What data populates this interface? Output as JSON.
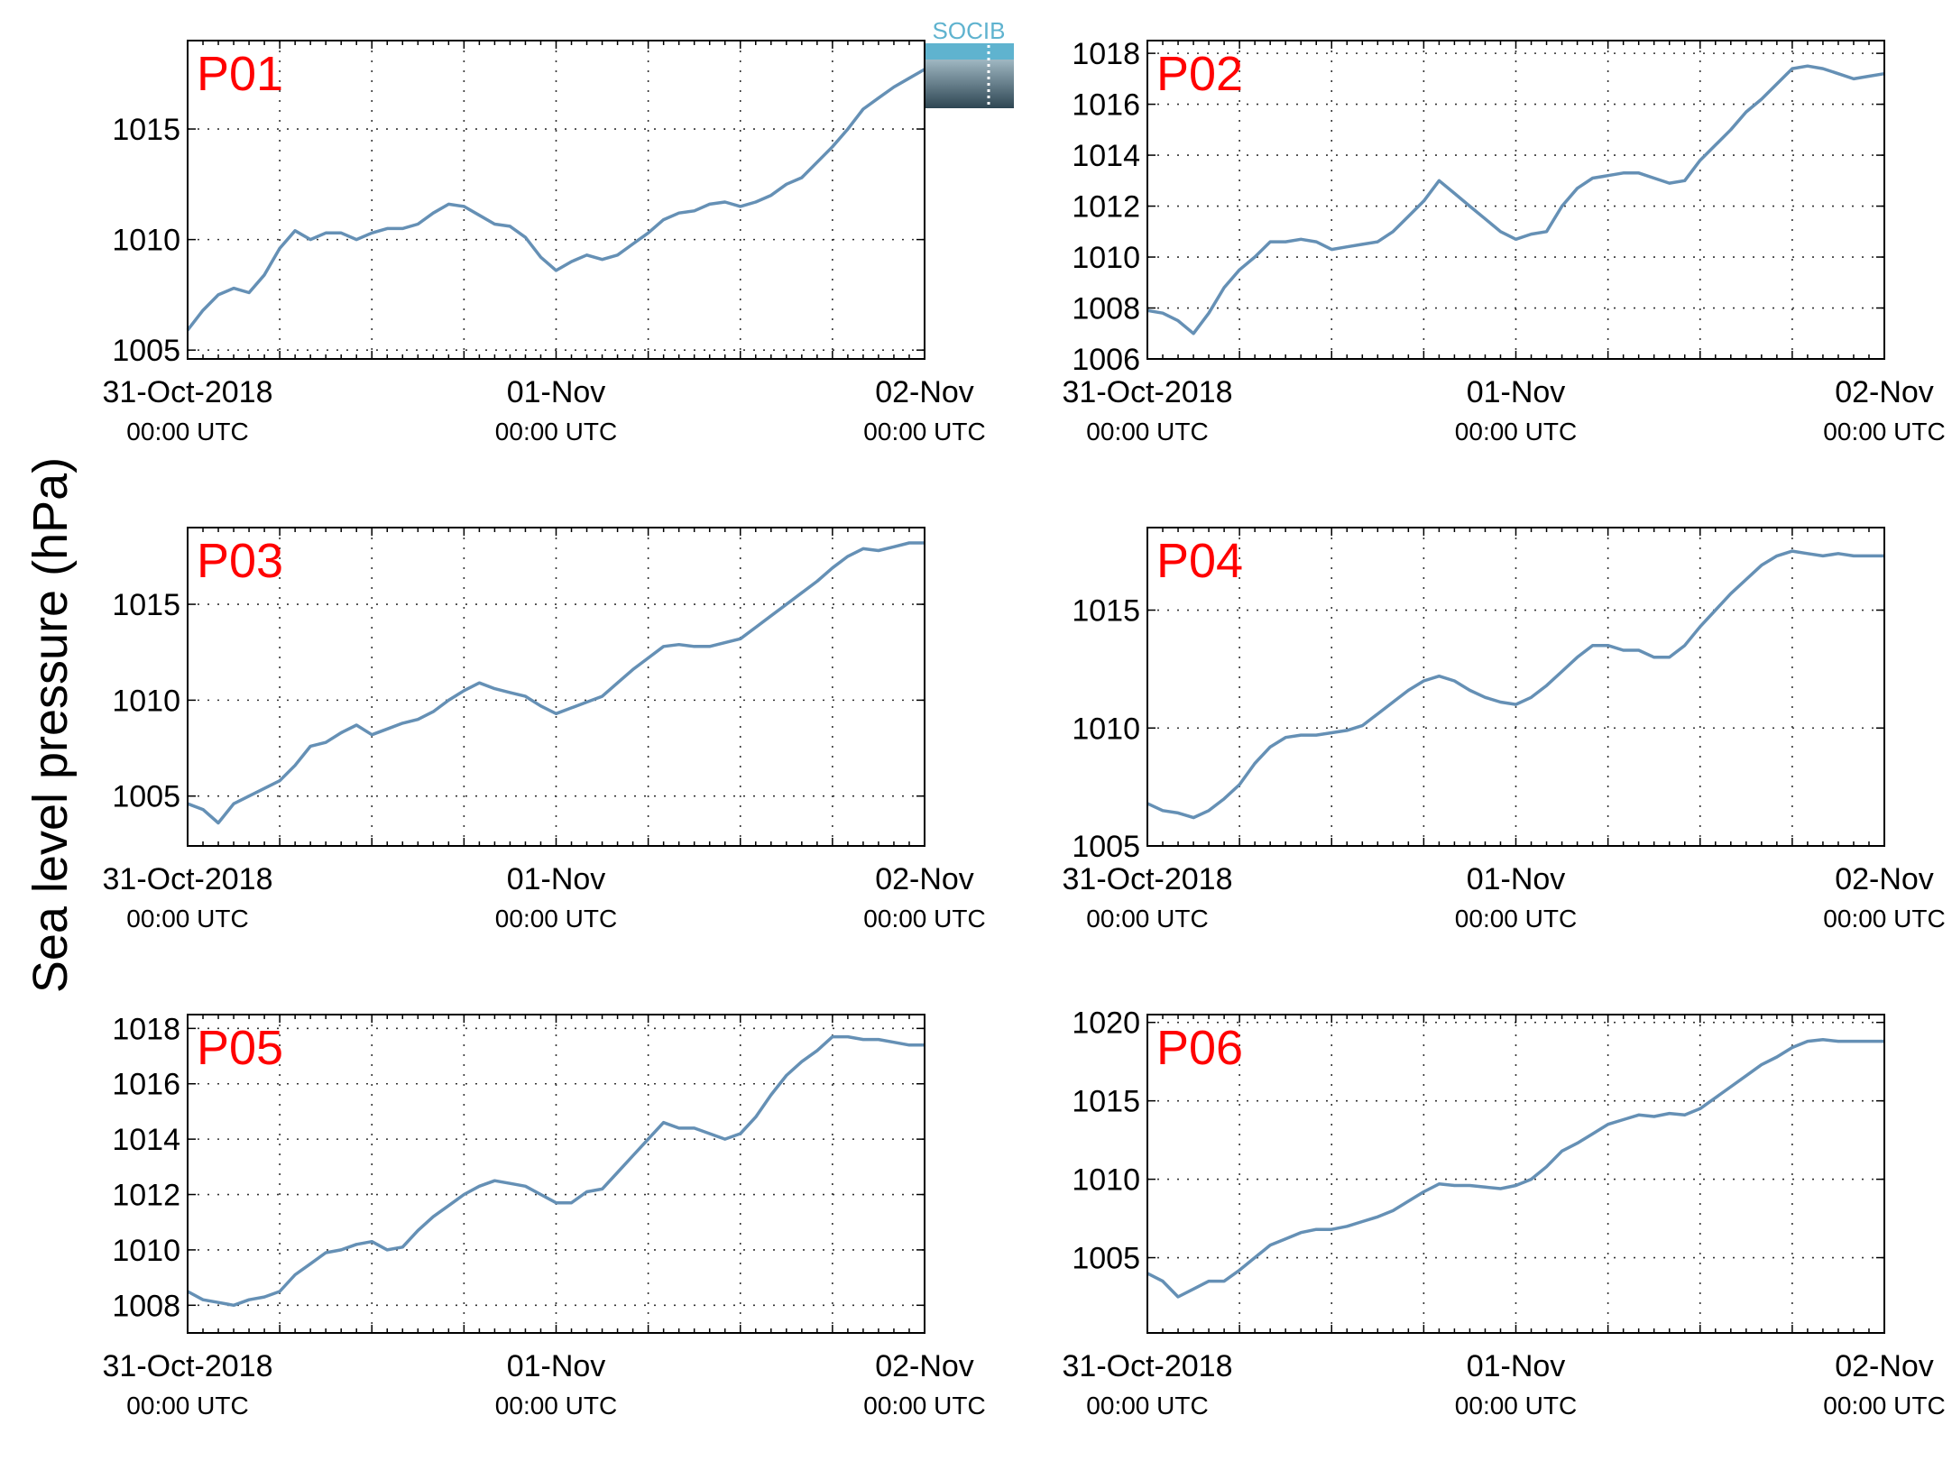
{
  "figure": {
    "ylabel": "Sea level pressure (hPa)",
    "logo_text": "SOCIB",
    "colors": {
      "line": "#6590B5",
      "panel_label": "#FF0000",
      "axis": "#000000",
      "grid": "#333333"
    }
  },
  "chart_data": [
    {
      "type": "line",
      "panel_label": "P01",
      "x_range": [
        0,
        48
      ],
      "ylim": [
        1004.6,
        1019.0
      ],
      "yticks": [
        1005,
        1010,
        1015
      ],
      "xticks": [
        {
          "hour": 0,
          "date": "31-Oct-2018",
          "time": "00:00 UTC"
        },
        {
          "hour": 24,
          "date": "01-Nov",
          "time": "00:00 UTC"
        },
        {
          "hour": 48,
          "date": "02-Nov",
          "time": "00:00 UTC"
        }
      ],
      "grid": true,
      "series": [
        {
          "x": [
            0,
            1,
            2,
            3,
            4,
            5,
            6,
            7,
            8,
            9,
            10,
            11,
            12,
            13,
            14,
            15,
            16,
            17,
            18,
            19,
            20,
            21,
            22,
            23,
            24,
            25,
            26,
            27,
            28,
            29,
            30,
            31,
            32,
            33,
            34,
            35,
            36,
            37,
            38,
            39,
            40,
            41,
            42,
            43,
            44,
            45,
            46,
            47,
            48
          ],
          "y": [
            1005.9,
            1006.8,
            1007.5,
            1007.8,
            1007.6,
            1008.4,
            1009.6,
            1010.4,
            1010.0,
            1010.3,
            1010.3,
            1010.0,
            1010.3,
            1010.5,
            1010.5,
            1010.7,
            1011.2,
            1011.6,
            1011.5,
            1011.1,
            1010.7,
            1010.6,
            1010.1,
            1009.2,
            1008.6,
            1009.0,
            1009.3,
            1009.1,
            1009.3,
            1009.8,
            1010.3,
            1010.9,
            1011.2,
            1011.3,
            1011.6,
            1011.7,
            1011.5,
            1011.7,
            1012.0,
            1012.5,
            1012.8,
            1013.5,
            1014.2,
            1015.0,
            1015.9,
            1016.4,
            1016.9,
            1017.3,
            1017.7
          ]
        }
      ]
    },
    {
      "type": "line",
      "panel_label": "P02",
      "x_range": [
        0,
        48
      ],
      "ylim": [
        1006,
        1018.5
      ],
      "yticks": [
        1006,
        1008,
        1010,
        1012,
        1014,
        1016,
        1018
      ],
      "xticks": [
        {
          "hour": 0,
          "date": "31-Oct-2018",
          "time": "00:00 UTC"
        },
        {
          "hour": 24,
          "date": "01-Nov",
          "time": "00:00 UTC"
        },
        {
          "hour": 48,
          "date": "02-Nov",
          "time": "00:00 UTC"
        }
      ],
      "grid": true,
      "series": [
        {
          "x": [
            0,
            1,
            2,
            3,
            4,
            5,
            6,
            7,
            8,
            9,
            10,
            11,
            12,
            13,
            14,
            15,
            16,
            17,
            18,
            19,
            20,
            21,
            22,
            23,
            24,
            25,
            26,
            27,
            28,
            29,
            30,
            31,
            32,
            33,
            34,
            35,
            36,
            37,
            38,
            39,
            40,
            41,
            42,
            43,
            44,
            45,
            46,
            47,
            48
          ],
          "y": [
            1007.9,
            1007.8,
            1007.5,
            1007.0,
            1007.8,
            1008.8,
            1009.5,
            1010.0,
            1010.6,
            1010.6,
            1010.7,
            1010.6,
            1010.3,
            1010.4,
            1010.5,
            1010.6,
            1011.0,
            1011.6,
            1012.2,
            1013.0,
            1012.5,
            1012.0,
            1011.5,
            1011.0,
            1010.7,
            1010.9,
            1011.0,
            1012.0,
            1012.7,
            1013.1,
            1013.2,
            1013.3,
            1013.3,
            1013.1,
            1012.9,
            1013.0,
            1013.8,
            1014.4,
            1015.0,
            1015.7,
            1016.2,
            1016.8,
            1017.4,
            1017.5,
            1017.4,
            1017.2,
            1017.0,
            1017.1,
            1017.2
          ]
        }
      ]
    },
    {
      "type": "line",
      "panel_label": "P03",
      "x_range": [
        0,
        48
      ],
      "ylim": [
        1002.4,
        1019.0
      ],
      "yticks": [
        1005,
        1010,
        1015
      ],
      "xticks": [
        {
          "hour": 0,
          "date": "31-Oct-2018",
          "time": "00:00 UTC"
        },
        {
          "hour": 24,
          "date": "01-Nov",
          "time": "00:00 UTC"
        },
        {
          "hour": 48,
          "date": "02-Nov",
          "time": "00:00 UTC"
        }
      ],
      "grid": true,
      "series": [
        {
          "x": [
            0,
            1,
            2,
            3,
            4,
            5,
            6,
            7,
            8,
            9,
            10,
            11,
            12,
            13,
            14,
            15,
            16,
            17,
            18,
            19,
            20,
            21,
            22,
            23,
            24,
            25,
            26,
            27,
            28,
            29,
            30,
            31,
            32,
            33,
            34,
            35,
            36,
            37,
            38,
            39,
            40,
            41,
            42,
            43,
            44,
            45,
            46,
            47,
            48
          ],
          "y": [
            1004.6,
            1004.3,
            1003.6,
            1004.6,
            1005.0,
            1005.4,
            1005.8,
            1006.6,
            1007.6,
            1007.8,
            1008.3,
            1008.7,
            1008.2,
            1008.5,
            1008.8,
            1009.0,
            1009.4,
            1010.0,
            1010.5,
            1010.9,
            1010.6,
            1010.4,
            1010.2,
            1009.7,
            1009.3,
            1009.6,
            1009.9,
            1010.2,
            1010.9,
            1011.6,
            1012.2,
            1012.8,
            1012.9,
            1012.8,
            1012.8,
            1013.0,
            1013.2,
            1013.8,
            1014.4,
            1015.0,
            1015.6,
            1016.2,
            1016.9,
            1017.5,
            1017.9,
            1017.8,
            1018.0,
            1018.2,
            1018.2
          ]
        }
      ]
    },
    {
      "type": "line",
      "panel_label": "P04",
      "x_range": [
        0,
        48
      ],
      "ylim": [
        1005,
        1018.5
      ],
      "yticks": [
        1005,
        1010,
        1015
      ],
      "xticks": [
        {
          "hour": 0,
          "date": "31-Oct-2018",
          "time": "00:00 UTC"
        },
        {
          "hour": 24,
          "date": "01-Nov",
          "time": "00:00 UTC"
        },
        {
          "hour": 48,
          "date": "02-Nov",
          "time": "00:00 UTC"
        }
      ],
      "grid": true,
      "series": [
        {
          "x": [
            0,
            1,
            2,
            3,
            4,
            5,
            6,
            7,
            8,
            9,
            10,
            11,
            12,
            13,
            14,
            15,
            16,
            17,
            18,
            19,
            20,
            21,
            22,
            23,
            24,
            25,
            26,
            27,
            28,
            29,
            30,
            31,
            32,
            33,
            34,
            35,
            36,
            37,
            38,
            39,
            40,
            41,
            42,
            43,
            44,
            45,
            46,
            47,
            48
          ],
          "y": [
            1006.8,
            1006.5,
            1006.4,
            1006.2,
            1006.5,
            1007.0,
            1007.6,
            1008.5,
            1009.2,
            1009.6,
            1009.7,
            1009.7,
            1009.8,
            1009.9,
            1010.1,
            1010.6,
            1011.1,
            1011.6,
            1012.0,
            1012.2,
            1012.0,
            1011.6,
            1011.3,
            1011.1,
            1011.0,
            1011.3,
            1011.8,
            1012.4,
            1013.0,
            1013.5,
            1013.5,
            1013.3,
            1013.3,
            1013.0,
            1013.0,
            1013.5,
            1014.3,
            1015.0,
            1015.7,
            1016.3,
            1016.9,
            1017.3,
            1017.5,
            1017.4,
            1017.3,
            1017.4,
            1017.3,
            1017.3,
            1017.3
          ]
        }
      ]
    },
    {
      "type": "line",
      "panel_label": "P05",
      "x_range": [
        0,
        48
      ],
      "ylim": [
        1007,
        1018.5
      ],
      "yticks": [
        1008,
        1010,
        1012,
        1014,
        1016,
        1018
      ],
      "xticks": [
        {
          "hour": 0,
          "date": "31-Oct-2018",
          "time": "00:00 UTC"
        },
        {
          "hour": 24,
          "date": "01-Nov",
          "time": "00:00 UTC"
        },
        {
          "hour": 48,
          "date": "02-Nov",
          "time": "00:00 UTC"
        }
      ],
      "grid": true,
      "series": [
        {
          "x": [
            0,
            1,
            2,
            3,
            4,
            5,
            6,
            7,
            8,
            9,
            10,
            11,
            12,
            13,
            14,
            15,
            16,
            17,
            18,
            19,
            20,
            21,
            22,
            23,
            24,
            25,
            26,
            27,
            28,
            29,
            30,
            31,
            32,
            33,
            34,
            35,
            36,
            37,
            38,
            39,
            40,
            41,
            42,
            43,
            44,
            45,
            46,
            47,
            48
          ],
          "y": [
            1008.5,
            1008.2,
            1008.1,
            1008.0,
            1008.2,
            1008.3,
            1008.5,
            1009.1,
            1009.5,
            1009.9,
            1010.0,
            1010.2,
            1010.3,
            1010.0,
            1010.1,
            1010.7,
            1011.2,
            1011.6,
            1012.0,
            1012.3,
            1012.5,
            1012.4,
            1012.3,
            1012.0,
            1011.7,
            1011.7,
            1012.1,
            1012.2,
            1012.8,
            1013.4,
            1014.0,
            1014.6,
            1014.4,
            1014.4,
            1014.2,
            1014.0,
            1014.2,
            1014.8,
            1015.6,
            1016.3,
            1016.8,
            1017.2,
            1017.7,
            1017.7,
            1017.6,
            1017.6,
            1017.5,
            1017.4,
            1017.4
          ]
        }
      ]
    },
    {
      "type": "line",
      "panel_label": "P06",
      "x_range": [
        0,
        48
      ],
      "ylim": [
        1000.2,
        1020.5
      ],
      "yticks": [
        1005,
        1010,
        1015,
        1020
      ],
      "xticks": [
        {
          "hour": 0,
          "date": "31-Oct-2018",
          "time": "00:00 UTC"
        },
        {
          "hour": 24,
          "date": "01-Nov",
          "time": "00:00 UTC"
        },
        {
          "hour": 48,
          "date": "02-Nov",
          "time": "00:00 UTC"
        }
      ],
      "grid": true,
      "series": [
        {
          "x": [
            0,
            1,
            2,
            3,
            4,
            5,
            6,
            7,
            8,
            9,
            10,
            11,
            12,
            13,
            14,
            15,
            16,
            17,
            18,
            19,
            20,
            21,
            22,
            23,
            24,
            25,
            26,
            27,
            28,
            29,
            30,
            31,
            32,
            33,
            34,
            35,
            36,
            37,
            38,
            39,
            40,
            41,
            42,
            43,
            44,
            45,
            46,
            47,
            48
          ],
          "y": [
            1004.0,
            1003.5,
            1002.5,
            1003.0,
            1003.5,
            1003.5,
            1004.2,
            1005.0,
            1005.8,
            1006.2,
            1006.6,
            1006.8,
            1006.8,
            1007.0,
            1007.3,
            1007.6,
            1008.0,
            1008.6,
            1009.2,
            1009.7,
            1009.6,
            1009.6,
            1009.5,
            1009.4,
            1009.6,
            1010.0,
            1010.8,
            1011.8,
            1012.3,
            1012.9,
            1013.5,
            1013.8,
            1014.1,
            1014.0,
            1014.2,
            1014.1,
            1014.5,
            1015.2,
            1015.9,
            1016.6,
            1017.3,
            1017.8,
            1018.4,
            1018.8,
            1018.9,
            1018.8,
            1018.8,
            1018.8,
            1018.8
          ]
        }
      ]
    }
  ]
}
